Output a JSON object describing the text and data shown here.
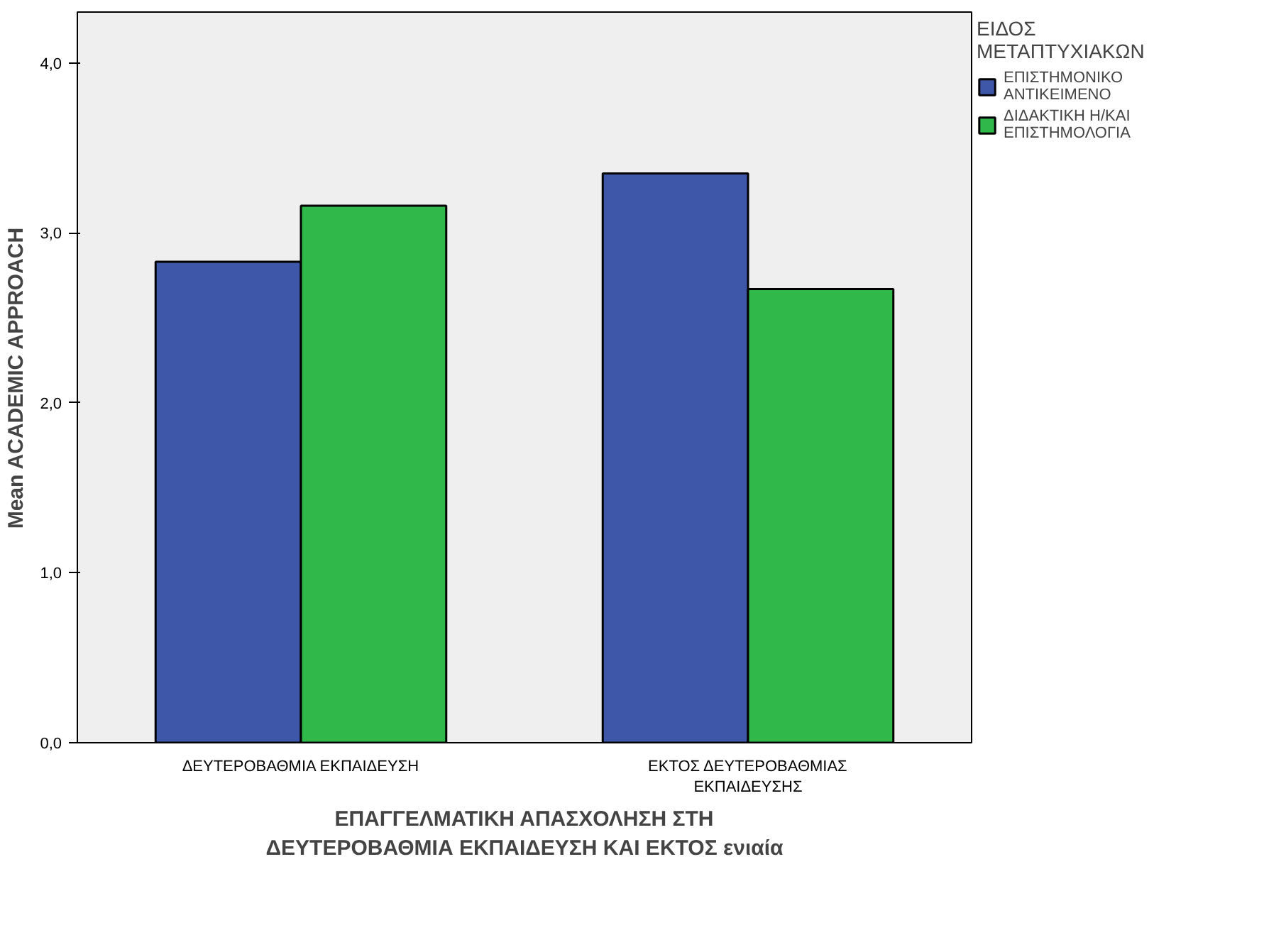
{
  "chart_data": {
    "type": "bar",
    "xlabel": "ΕΠΑΓΓΕΛΜΑΤΙΚΗ ΑΠΑΣΧΟΛΗΣΗ ΣΤΗ ΔΕΥΤΕΡΟΒΑΘΜΙΑ ΕΚΠΑΙΔΕΥΣΗ ΚΑΙ ΕΚΤΟΣ ενιαία",
    "ylabel": "Mean ACADEMIC APPROACH",
    "legend_title": "ΕΙΔΟΣ ΜΕΤΑΠΤΥΧΙΑΚΩΝ",
    "categories": [
      "ΔΕΥΤΕΡΟΒΑΘΜΙΑ ΕΚΠΑΙΔΕΥΣΗ",
      "ΕΚΤΟΣ ΔΕΥΤΕΡΟΒΑΘΜΙΑΣ ΕΚΠΑΙΔΕΥΣΗΣ"
    ],
    "series": [
      {
        "name": "ΕΠΙΣΤΗΜΟΝΙΚΟ ΑΝΤΙΚΕΙΜΕΝΟ",
        "color": "#3f57a9",
        "values": [
          2.83,
          3.35
        ]
      },
      {
        "name": "ΔΙΔΑΚΤΙΚΗ Η/ΚΑΙ ΕΠΙΣΤΗΜΟΛΟΓΙΑ",
        "color": "#30b84b",
        "values": [
          3.16,
          2.67
        ]
      }
    ],
    "ylim": [
      0,
      4.3
    ],
    "yticks": [
      {
        "value": 0,
        "label": "0,0"
      },
      {
        "value": 1,
        "label": "1,0"
      },
      {
        "value": 2,
        "label": "2,0"
      },
      {
        "value": 3,
        "label": "3,0"
      },
      {
        "value": 4,
        "label": "4,0"
      }
    ],
    "grid": false,
    "legend": "right"
  }
}
